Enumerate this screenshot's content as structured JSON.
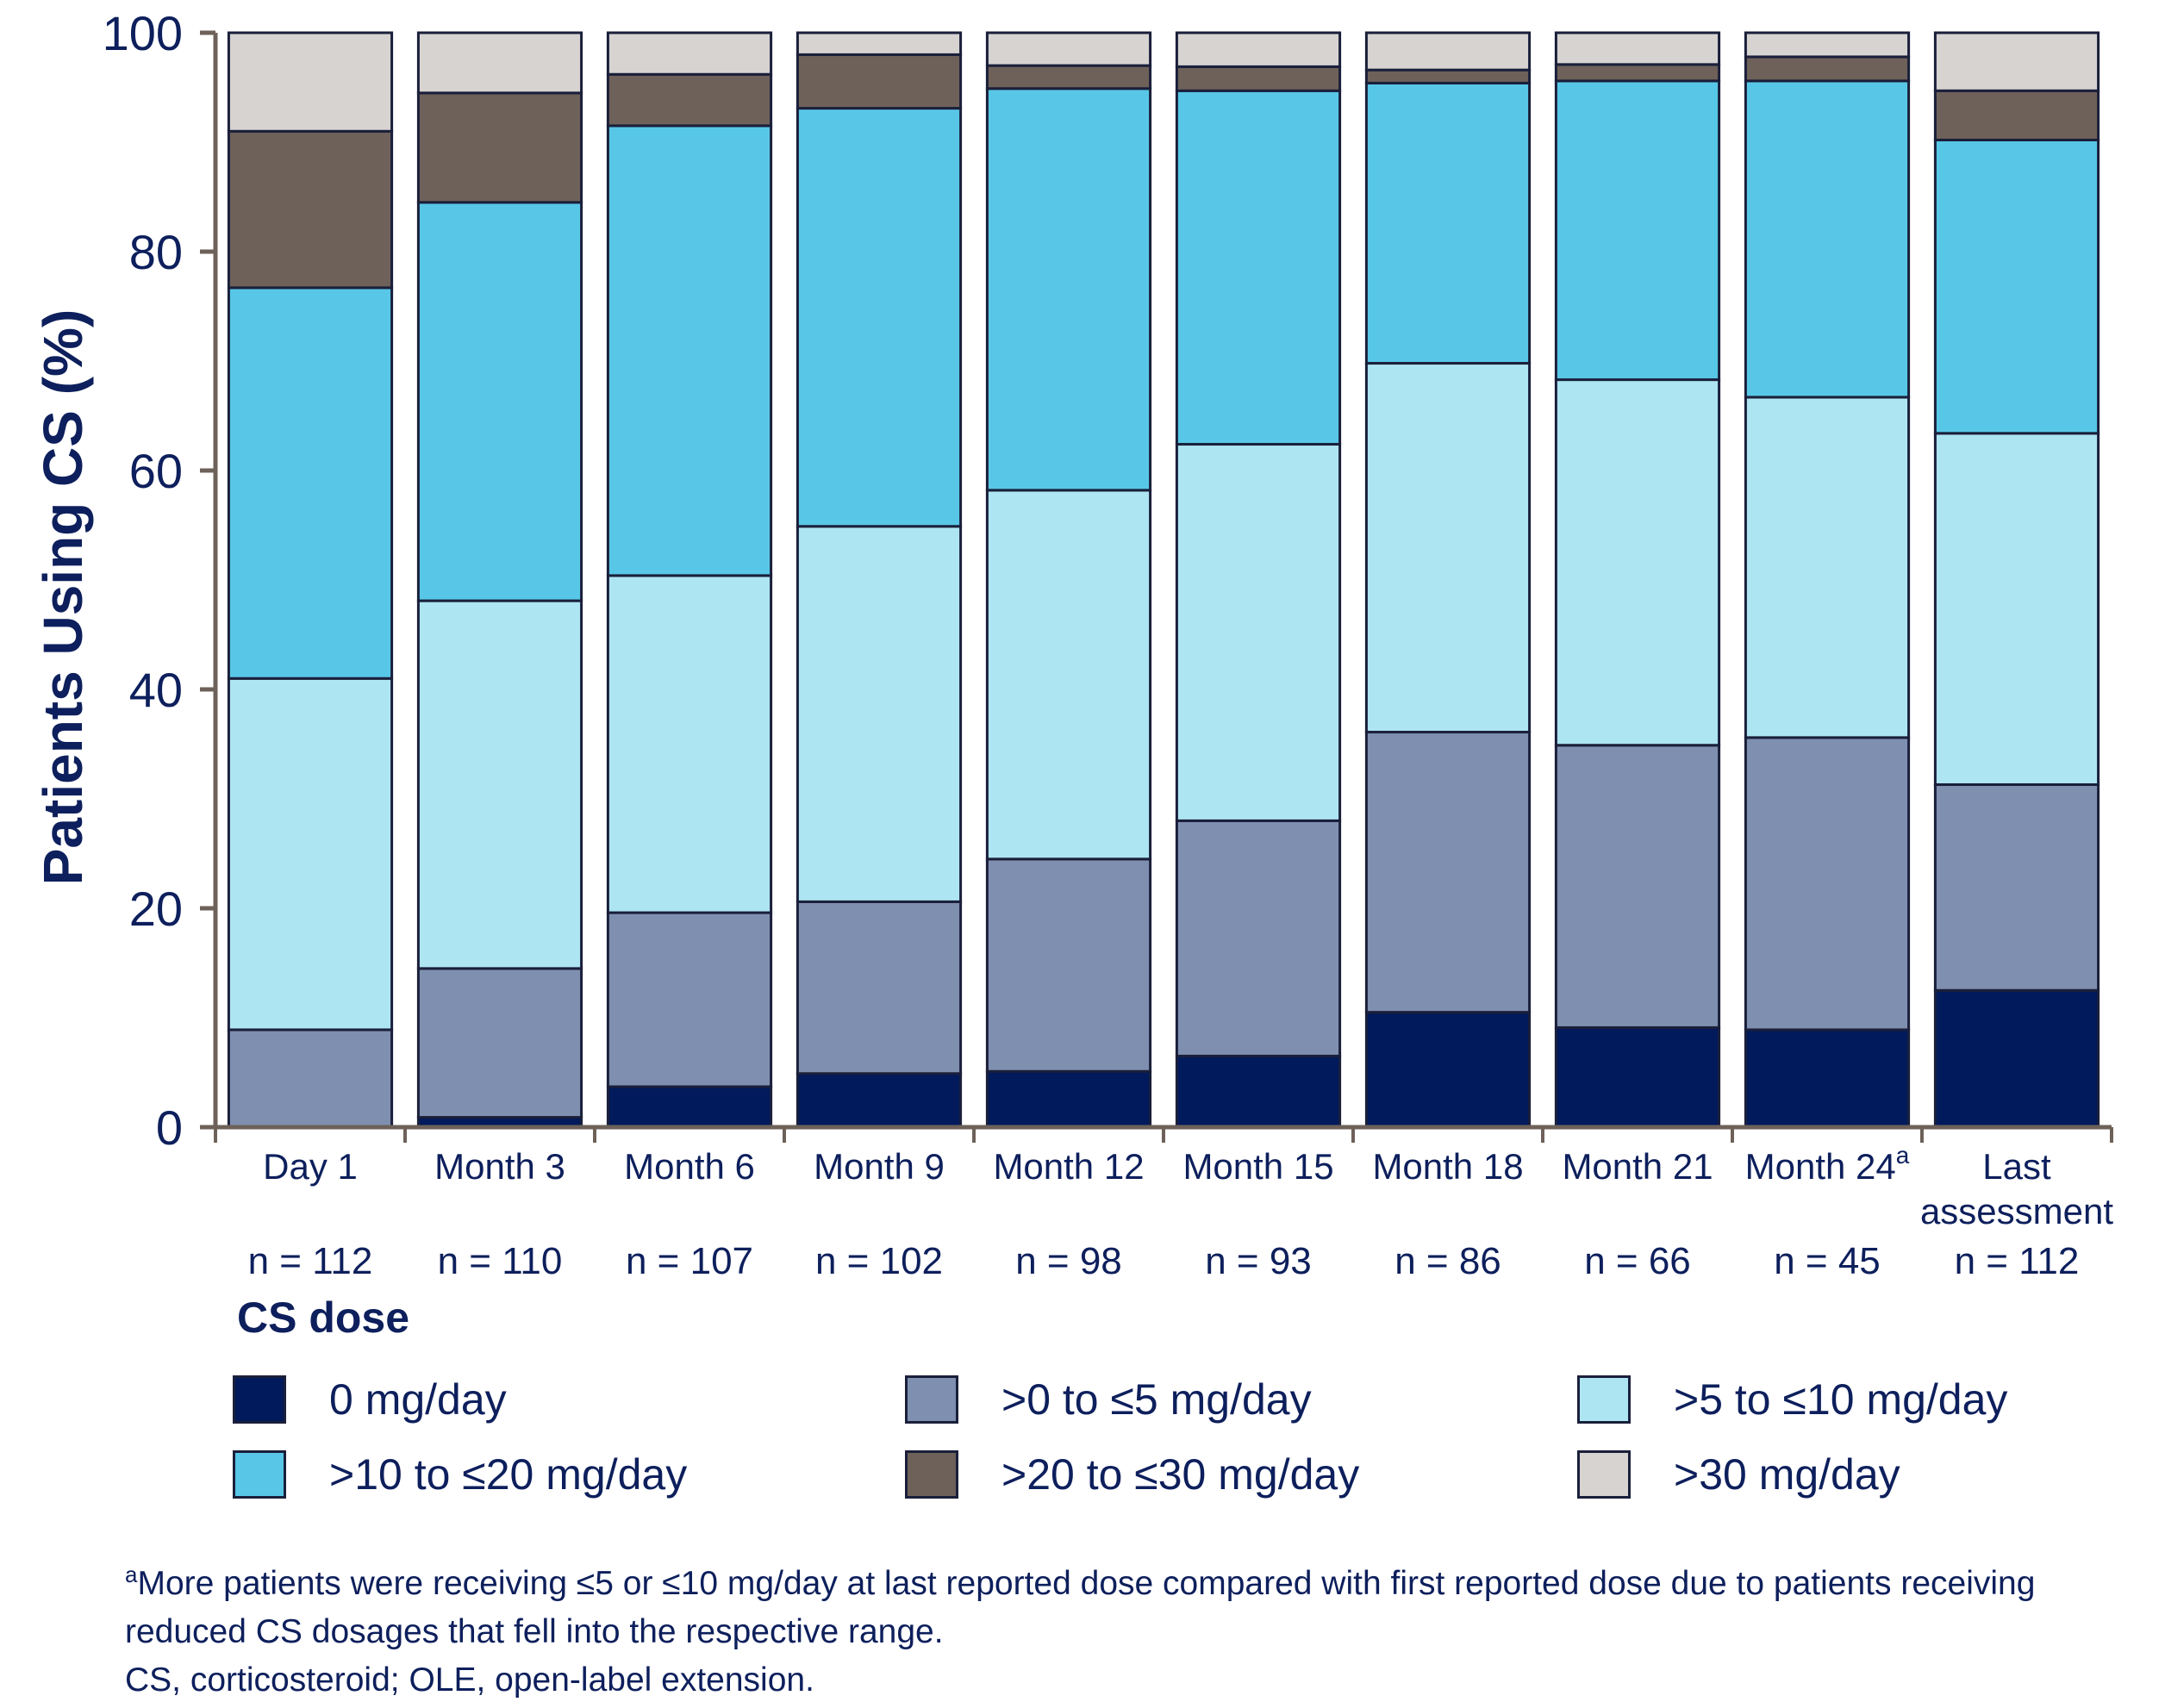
{
  "chart_data": {
    "type": "bar",
    "stacked": true,
    "ylabel": "Patients Using CS (%)",
    "ylim": [
      0,
      100
    ],
    "yticks": [
      0,
      20,
      40,
      60,
      80,
      100
    ],
    "categories": [
      "Day 1",
      "Month 3",
      "Month 6",
      "Month 9",
      "Month 12",
      "Month 15",
      "Month 18",
      "Month 21",
      "Month 24",
      "Last assessment"
    ],
    "category_superscripts": [
      "",
      "",
      "",
      "",
      "",
      "",
      "",
      "",
      "a",
      ""
    ],
    "n_labels": [
      "n = 112",
      "n = 110",
      "n = 107",
      "n = 102",
      "n = 98",
      "n = 93",
      "n = 86",
      "n = 66",
      "n = 45",
      "n = 112"
    ],
    "series": [
      {
        "name": "0 mg/day",
        "color": "#001a5c",
        "values": [
          0.0,
          0.9,
          3.7,
          4.9,
          5.1,
          6.5,
          10.5,
          9.1,
          8.9,
          12.5
        ]
      },
      {
        "name": ">0 to ≤5 mg/day",
        "color": "#7f8fb0",
        "values": [
          8.9,
          13.6,
          15.9,
          15.7,
          19.4,
          21.5,
          25.6,
          25.8,
          26.7,
          18.8
        ]
      },
      {
        "name": ">5 to ≤10 mg/day",
        "color": "#aee5f3",
        "values": [
          32.1,
          33.6,
          30.8,
          34.3,
          33.7,
          34.4,
          33.7,
          33.4,
          31.1,
          32.1
        ]
      },
      {
        "name": ">10 to ≤20 mg/day",
        "color": "#58c7e7",
        "values": [
          35.7,
          36.4,
          41.1,
          38.2,
          36.7,
          32.3,
          25.6,
          27.3,
          28.9,
          26.8
        ]
      },
      {
        "name": ">20 to ≤30 mg/day",
        "color": "#6e6159",
        "values": [
          14.3,
          10.0,
          4.7,
          4.9,
          2.1,
          2.2,
          1.2,
          1.5,
          2.2,
          4.5
        ]
      },
      {
        "name": ">30 mg/day",
        "color": "#d6d3d1",
        "values": [
          9.0,
          5.5,
          3.8,
          2.0,
          3.0,
          3.1,
          3.4,
          2.9,
          2.2,
          5.3
        ]
      }
    ],
    "legend": {
      "title": "CS dose",
      "placement": "bottom"
    }
  },
  "footnotes": {
    "sup": "a",
    "line1": "More patients were receiving ≤5 or ≤10 mg/day at last reported dose compared with first reported dose due to patients receiving reduced CS dosages that fell into the respective range.",
    "line2": "CS, corticosteroid; OLE, open-label extension."
  }
}
